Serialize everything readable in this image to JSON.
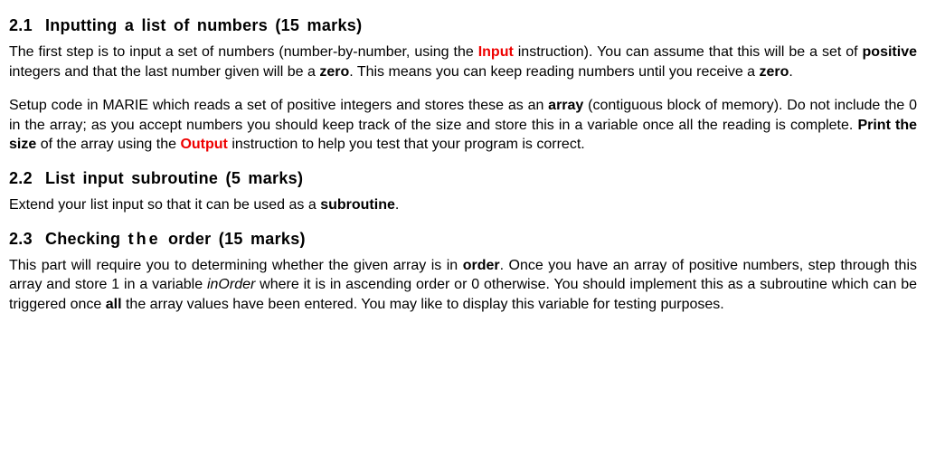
{
  "s1": {
    "num": "2.1",
    "title": "Inputting a list of numbers (15 marks)",
    "p1a": "The first step is to input a set of numbers (number-by-number, using the ",
    "p1_input": "Input",
    "p1b": " instruction). You can assume that this will be a set of ",
    "p1_pos": "positive",
    "p1c": " integers and that the last number given will be a ",
    "p1_zero1": "zero",
    "p1d": ". This means you can keep reading numbers until you receive a ",
    "p1_zero2": "zero",
    "p1e": ".",
    "p2a": "Setup code in MARIE which reads a set of positive integers and stores these as an ",
    "p2_array": "array",
    "p2b": " (contiguous block of memory). Do not include the 0 in the array; as you accept numbers you should keep track of the size and store this in a variable once all the reading is complete. ",
    "p2_print": "Print the size",
    "p2c": " of the array using the ",
    "p2_output": "Output",
    "p2d": " instruction to help you test that your program is correct."
  },
  "s2": {
    "num": "2.2",
    "title": "List input subroutine (5 marks)",
    "p1a": "Extend your list input so that it can be used as a ",
    "p1_sub": "subroutine",
    "p1b": "."
  },
  "s3": {
    "num": "2.3",
    "title_a": "Checking ",
    "title_the": "the",
    "title_b": " order (15 marks)",
    "p1a": "This part will require you to determining whether the given array is in ",
    "p1_order": "order",
    "p1b": ". Once you have an array of positive numbers, step through this array and store 1 in a variable ",
    "p1_inorder": "inOrder",
    "p1c": " where it is in ascending order or 0 otherwise. You should implement this as a subroutine which can be triggered once ",
    "p1_all": "all",
    "p1d": " the array values have been entered. You may like to display this variable for testing purposes."
  }
}
